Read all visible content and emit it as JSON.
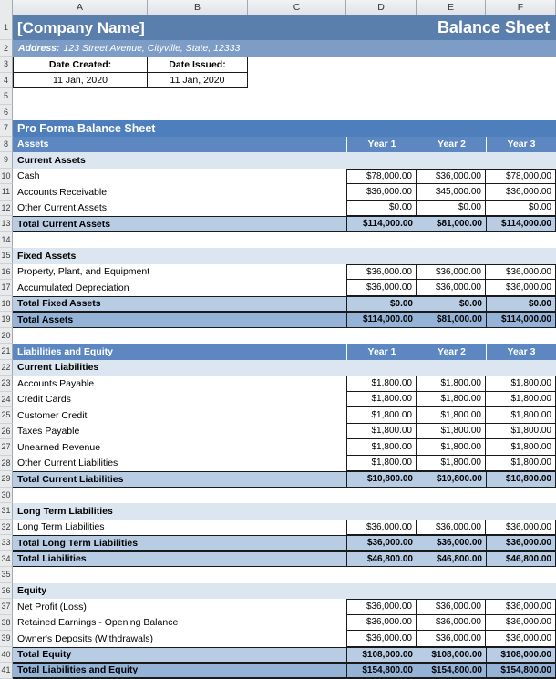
{
  "columns": [
    "A",
    "B",
    "C",
    "D",
    "E",
    "F"
  ],
  "year_columns": [
    "Year 1",
    "Year 2",
    "Year 3"
  ],
  "header": {
    "company_name": "[Company Name]",
    "sheet_title": "Balance Sheet",
    "address_label": "Address:",
    "address_value": "123 Street Avenue, Cityville, State, 12333",
    "date_created_label": "Date Created:",
    "date_created_value": "11 Jan, 2020",
    "date_issued_label": "Date Issued:",
    "date_issued_value": "11 Jan, 2020"
  },
  "rows": [
    {
      "kind": "company"
    },
    {
      "kind": "address"
    },
    {
      "kind": "dates_labels"
    },
    {
      "kind": "dates_values"
    },
    {
      "kind": "blank"
    },
    {
      "kind": "blank"
    },
    {
      "kind": "banner",
      "label": "Pro Forma Balance Sheet"
    },
    {
      "kind": "year_header",
      "label": "Assets"
    },
    {
      "kind": "subhead",
      "label": "Current Assets"
    },
    {
      "kind": "item",
      "label": "Cash",
      "values": [
        "$78,000.00",
        "$36,000.00",
        "$78,000.00"
      ]
    },
    {
      "kind": "item",
      "label": "Accounts Receivable",
      "values": [
        "$36,000.00",
        "$45,000.00",
        "$36,000.00"
      ]
    },
    {
      "kind": "item",
      "label": "Other Current Assets",
      "values": [
        "$0.00",
        "$0.00",
        "$0.00"
      ]
    },
    {
      "kind": "total1",
      "label": "Total Current Assets",
      "values": [
        "$114,000.00",
        "$81,000.00",
        "$114,000.00"
      ]
    },
    {
      "kind": "blank"
    },
    {
      "kind": "subhead",
      "label": "Fixed Assets"
    },
    {
      "kind": "item",
      "label": "Property, Plant, and Equipment",
      "values": [
        "$36,000.00",
        "$36,000.00",
        "$36,000.00"
      ]
    },
    {
      "kind": "item",
      "label": "Accumulated Depreciation",
      "values": [
        "$36,000.00",
        "$36,000.00",
        "$36,000.00"
      ]
    },
    {
      "kind": "total1",
      "label": "Total Fixed Assets",
      "values": [
        "$0.00",
        "$0.00",
        "$0.00"
      ]
    },
    {
      "kind": "total2",
      "label": "Total Assets",
      "values": [
        "$114,000.00",
        "$81,000.00",
        "$114,000.00"
      ]
    },
    {
      "kind": "blank"
    },
    {
      "kind": "year_header",
      "label": "Liabilities and Equity"
    },
    {
      "kind": "subhead",
      "label": "Current Liabilities"
    },
    {
      "kind": "item",
      "label": "Accounts Payable",
      "values": [
        "$1,800.00",
        "$1,800.00",
        "$1,800.00"
      ]
    },
    {
      "kind": "item",
      "label": "Credit Cards",
      "values": [
        "$1,800.00",
        "$1,800.00",
        "$1,800.00"
      ]
    },
    {
      "kind": "item",
      "label": "Customer Credit",
      "values": [
        "$1,800.00",
        "$1,800.00",
        "$1,800.00"
      ]
    },
    {
      "kind": "item",
      "label": "Taxes Payable",
      "values": [
        "$1,800.00",
        "$1,800.00",
        "$1,800.00"
      ]
    },
    {
      "kind": "item",
      "label": "Unearned Revenue",
      "values": [
        "$1,800.00",
        "$1,800.00",
        "$1,800.00"
      ]
    },
    {
      "kind": "item",
      "label": "Other Current Liabilities",
      "values": [
        "$1,800.00",
        "$1,800.00",
        "$1,800.00"
      ]
    },
    {
      "kind": "total1",
      "label": "Total Current Liabilities",
      "values": [
        "$10,800.00",
        "$10,800.00",
        "$10,800.00"
      ]
    },
    {
      "kind": "blank"
    },
    {
      "kind": "subhead",
      "label": "Long Term Liabilities"
    },
    {
      "kind": "item",
      "label": "Long Term Liabilities",
      "values": [
        "$36,000.00",
        "$36,000.00",
        "$36,000.00"
      ]
    },
    {
      "kind": "total1",
      "label": "Total Long Term Liabilities",
      "values": [
        "$36,000.00",
        "$36,000.00",
        "$36,000.00"
      ]
    },
    {
      "kind": "total1",
      "label": "Total Liabilities",
      "values": [
        "$46,800.00",
        "$46,800.00",
        "$46,800.00"
      ]
    },
    {
      "kind": "blank"
    },
    {
      "kind": "subhead",
      "label": "Equity"
    },
    {
      "kind": "item",
      "label": "Net Profit (Loss)",
      "values": [
        "$36,000.00",
        "$36,000.00",
        "$36,000.00"
      ]
    },
    {
      "kind": "item",
      "label": "Retained Earnings - Opening Balance",
      "values": [
        "$36,000.00",
        "$36,000.00",
        "$36,000.00"
      ]
    },
    {
      "kind": "item",
      "label": "Owner's Deposits (Withdrawals)",
      "values": [
        "$36,000.00",
        "$36,000.00",
        "$36,000.00"
      ]
    },
    {
      "kind": "total1",
      "label": "Total Equity",
      "values": [
        "$108,000.00",
        "$108,000.00",
        "$108,000.00"
      ]
    },
    {
      "kind": "total2",
      "label": "Total Liabilities and Equity",
      "values": [
        "$154,800.00",
        "$154,800.00",
        "$154,800.00"
      ]
    }
  ],
  "colors": {
    "title_band": "#5B7FAC",
    "address_band": "#7D9CC6",
    "banner_band": "#4E7FBC",
    "year_header_band": "#5C87C0",
    "subhead_band": "#DCE6F1",
    "total_band": "#B8CCE4",
    "grand_total_band": "#95B3D7",
    "band_text": "#FFFFFF",
    "cell_border": "#1A1A1A",
    "chrome_bg": "#E8EAEC",
    "chrome_border": "#A2A9B1",
    "chrome_line": "#CDD2D8"
  }
}
